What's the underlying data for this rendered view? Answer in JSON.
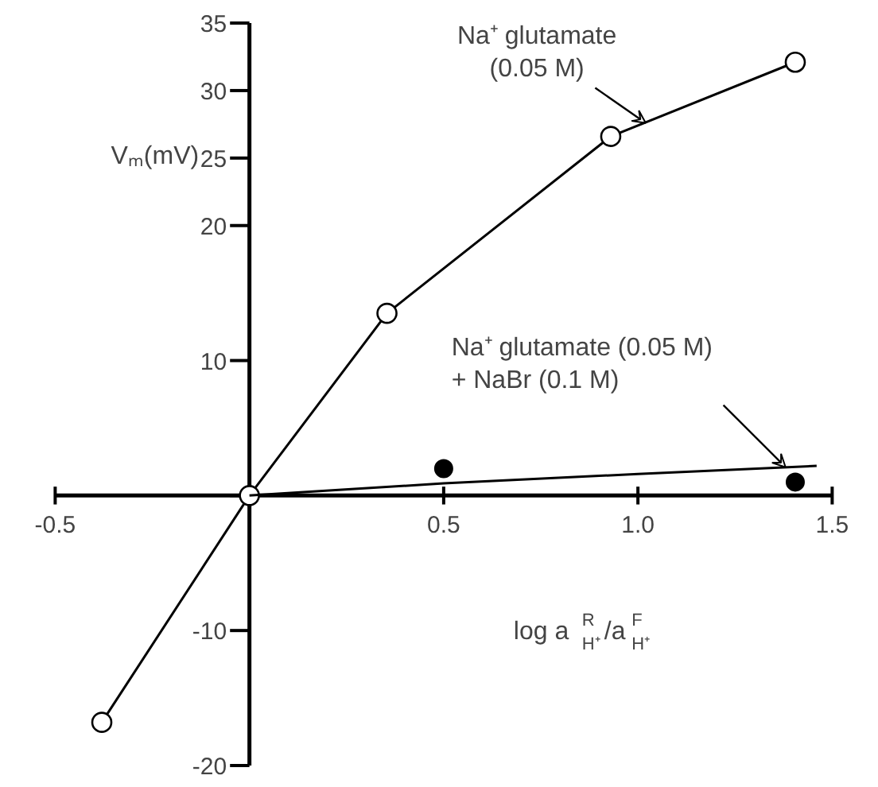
{
  "chart_data": {
    "type": "line",
    "xlabel": "log a$^{R}$$_{H⁺}$/a$^{F}$$_{H⁺}$",
    "ylabel": "Vₘ(mV)",
    "xlim": [
      -0.5,
      1.5
    ],
    "ylim": [
      -20,
      35
    ],
    "xticks": [
      {
        "value": -0.5,
        "label": "-0.5"
      },
      {
        "value": 0,
        "label": null
      },
      {
        "value": 0.5,
        "label": "0.5"
      },
      {
        "value": 1.0,
        "label": "1.0"
      },
      {
        "value": 1.5,
        "label": "1.5"
      }
    ],
    "yticks": [
      -20,
      -10,
      {
        "value": 0,
        "label": null
      },
      10,
      20,
      25,
      30,
      35
    ],
    "series": [
      {
        "marker": "circle",
        "color": "#000000",
        "x": [
          -0.38,
          0,
          0.354,
          0.93,
          1.405
        ],
        "values": [
          -16.8,
          0,
          13.5,
          26.6,
          32.1
        ]
      },
      {
        "type": "line",
        "marker": "none",
        "color": "#000000",
        "x": [
          0,
          0.5,
          1.0,
          1.46
        ],
        "values": [
          0,
          0.9,
          1.6,
          2.2
        ]
      },
      {
        "type": "scatter",
        "marker": "circle",
        "color": "#000000",
        "x": [
          0.5,
          1.405
        ],
        "values": [
          2.0,
          1.0
        ]
      }
    ],
    "annotations": [
      {
        "text": "Na⁺ glutamate\n(0.05 M)",
        "x": 1.02,
        "y": 27.6
      },
      {
        "text": "Na⁺ glutamate (0.05 M)\n+ NaBr  (0.1 M)",
        "x": 1.38,
        "y": 2.1
      }
    ],
    "grid": false
  }
}
